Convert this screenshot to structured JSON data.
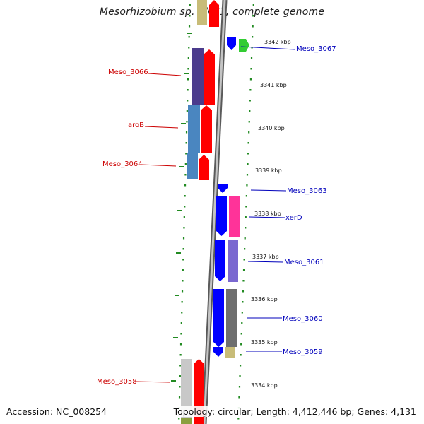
{
  "title": "Mesorhizobium sp. BNC1, complete genome",
  "accession": "Accession: NC_008254",
  "topology": "Topology: circular; Length: 4,412,446 bp; Genes: 4,131",
  "colors": {
    "red": "#ff0000",
    "blue": "#0000ff",
    "green": "#33cc33",
    "dark_purple": "#4b3b8c",
    "steel_blue": "#4a86c0",
    "magenta": "#ff3399",
    "violet": "#7a68d0",
    "dark_gray": "#6e6e6e",
    "khaki": "#c8bc78",
    "light_gray": "#c8c8c8",
    "olive": "#8aa040",
    "dotted_green": "#228b22",
    "label_red": "#cc0000",
    "label_blue": "#0000bb"
  },
  "ticks": [
    {
      "label": "3342 kbp"
    },
    {
      "label": "3341 kbp"
    },
    {
      "label": "3340 kbp"
    },
    {
      "label": "3339 kbp"
    },
    {
      "label": "3338 kbp"
    },
    {
      "label": "3337 kbp"
    },
    {
      "label": "3336 kbp"
    },
    {
      "label": "3335 kbp"
    },
    {
      "label": "3334 kbp"
    }
  ],
  "left_labels": [
    {
      "text": "Meso_3066"
    },
    {
      "text": "aroB"
    },
    {
      "text": "Meso_3064"
    },
    {
      "text": "Meso_3058"
    }
  ],
  "right_labels": [
    {
      "text": "Meso_3067"
    },
    {
      "text": "Meso_3063"
    },
    {
      "text": "xerD"
    },
    {
      "text": "Meso_3061"
    },
    {
      "text": "Meso_3060"
    },
    {
      "text": "Meso_3059"
    }
  ]
}
